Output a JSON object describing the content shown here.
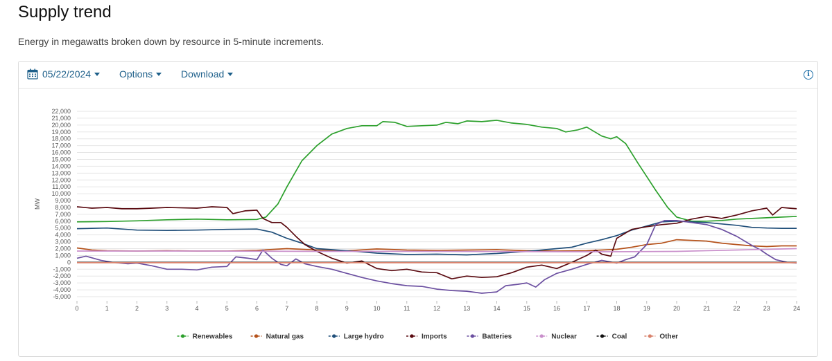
{
  "header": {
    "title": "Supply trend",
    "subtitle": "Energy in megawatts broken down by resource in 5-minute increments."
  },
  "toolbar": {
    "date": "05/22/2024",
    "options_label": "Options",
    "download_label": "Download",
    "info_glyph": "i"
  },
  "chart_data": {
    "type": "line",
    "ylabel": "MW",
    "ylim": [
      -5000,
      22000
    ],
    "ytick_step": 1000,
    "xlim": [
      0,
      24
    ],
    "x_ticks": [
      0,
      1,
      2,
      3,
      4,
      5,
      6,
      7,
      8,
      9,
      10,
      11,
      12,
      13,
      14,
      15,
      16,
      17,
      18,
      19,
      20,
      21,
      22,
      23,
      24
    ],
    "grid": true,
    "legend_position": "bottom",
    "series": [
      {
        "name": "Renewables",
        "color": "#2ca02c",
        "points": [
          [
            0,
            5900
          ],
          [
            1,
            5950
          ],
          [
            2,
            6050
          ],
          [
            3,
            6200
          ],
          [
            4,
            6300
          ],
          [
            5,
            6200
          ],
          [
            6,
            6250
          ],
          [
            6.3,
            6600
          ],
          [
            6.7,
            8500
          ],
          [
            7,
            11000
          ],
          [
            7.5,
            14800
          ],
          [
            8,
            17000
          ],
          [
            8.5,
            18700
          ],
          [
            9,
            19500
          ],
          [
            9.5,
            19900
          ],
          [
            10,
            19900
          ],
          [
            10.2,
            20500
          ],
          [
            10.6,
            20400
          ],
          [
            11,
            19800
          ],
          [
            11.5,
            19900
          ],
          [
            12,
            20000
          ],
          [
            12.3,
            20400
          ],
          [
            12.7,
            20200
          ],
          [
            13,
            20600
          ],
          [
            13.5,
            20500
          ],
          [
            14,
            20700
          ],
          [
            14.5,
            20300
          ],
          [
            15,
            20100
          ],
          [
            15.5,
            19700
          ],
          [
            16,
            19500
          ],
          [
            16.3,
            19000
          ],
          [
            16.7,
            19300
          ],
          [
            17,
            19700
          ],
          [
            17.5,
            18400
          ],
          [
            17.8,
            18000
          ],
          [
            18,
            18300
          ],
          [
            18.3,
            17300
          ],
          [
            18.7,
            14500
          ],
          [
            19,
            12500
          ],
          [
            19.3,
            10500
          ],
          [
            19.7,
            8000
          ],
          [
            20,
            6600
          ],
          [
            20.5,
            6000
          ],
          [
            21,
            6000
          ],
          [
            21.5,
            6100
          ],
          [
            22,
            6300
          ],
          [
            23,
            6500
          ],
          [
            24,
            6700
          ]
        ]
      },
      {
        "name": "Natural gas",
        "color": "#b5521b",
        "points": [
          [
            0,
            2100
          ],
          [
            0.5,
            1800
          ],
          [
            1,
            1700
          ],
          [
            2,
            1650
          ],
          [
            3,
            1700
          ],
          [
            4,
            1650
          ],
          [
            5,
            1650
          ],
          [
            6,
            1750
          ],
          [
            7,
            2000
          ],
          [
            8,
            1800
          ],
          [
            9,
            1700
          ],
          [
            10,
            1950
          ],
          [
            11,
            1800
          ],
          [
            12,
            1750
          ],
          [
            13,
            1800
          ],
          [
            14,
            1850
          ],
          [
            15,
            1700
          ],
          [
            16,
            1650
          ],
          [
            17,
            1700
          ],
          [
            18,
            1900
          ],
          [
            18.5,
            2200
          ],
          [
            19,
            2600
          ],
          [
            19.5,
            2800
          ],
          [
            20,
            3300
          ],
          [
            20.5,
            3200
          ],
          [
            21,
            3100
          ],
          [
            21.5,
            2800
          ],
          [
            22,
            2600
          ],
          [
            22.5,
            2400
          ],
          [
            23,
            2300
          ],
          [
            23.5,
            2400
          ],
          [
            24,
            2400
          ]
        ]
      },
      {
        "name": "Large hydro",
        "color": "#1f4e79",
        "points": [
          [
            0,
            4900
          ],
          [
            1,
            5000
          ],
          [
            2,
            4700
          ],
          [
            3,
            4650
          ],
          [
            4,
            4700
          ],
          [
            5,
            4800
          ],
          [
            6,
            4850
          ],
          [
            6.5,
            4400
          ],
          [
            7,
            3500
          ],
          [
            7.5,
            2800
          ],
          [
            8,
            2000
          ],
          [
            9,
            1700
          ],
          [
            10,
            1350
          ],
          [
            11,
            1150
          ],
          [
            12,
            1200
          ],
          [
            13,
            1100
          ],
          [
            14,
            1300
          ],
          [
            15,
            1600
          ],
          [
            15.5,
            1800
          ],
          [
            16,
            2000
          ],
          [
            16.5,
            2200
          ],
          [
            17,
            2800
          ],
          [
            17.5,
            3300
          ],
          [
            18,
            3900
          ],
          [
            18.5,
            4700
          ],
          [
            19,
            5300
          ],
          [
            19.5,
            5900
          ],
          [
            20,
            6000
          ],
          [
            20.5,
            5900
          ],
          [
            21,
            5800
          ],
          [
            21.5,
            5600
          ],
          [
            22,
            5400
          ],
          [
            22.5,
            5100
          ],
          [
            23,
            5000
          ],
          [
            23.5,
            4950
          ],
          [
            24,
            4950
          ]
        ]
      },
      {
        "name": "Imports",
        "color": "#5a0a10",
        "points": [
          [
            0,
            8100
          ],
          [
            0.5,
            7900
          ],
          [
            1,
            8000
          ],
          [
            1.5,
            7800
          ],
          [
            2,
            7800
          ],
          [
            2.5,
            7900
          ],
          [
            3,
            8000
          ],
          [
            4,
            7900
          ],
          [
            4.5,
            8100
          ],
          [
            5,
            8000
          ],
          [
            5.2,
            7100
          ],
          [
            5.6,
            7500
          ],
          [
            6,
            7600
          ],
          [
            6.2,
            6400
          ],
          [
            6.5,
            5800
          ],
          [
            6.8,
            5800
          ],
          [
            7,
            5100
          ],
          [
            7.3,
            3800
          ],
          [
            7.6,
            2600
          ],
          [
            8,
            1600
          ],
          [
            8.5,
            600
          ],
          [
            9,
            -100
          ],
          [
            9.5,
            200
          ],
          [
            10,
            -900
          ],
          [
            10.5,
            -1200
          ],
          [
            11,
            -1000
          ],
          [
            11.5,
            -1400
          ],
          [
            12,
            -1500
          ],
          [
            12.5,
            -2400
          ],
          [
            13,
            -2000
          ],
          [
            13.5,
            -2200
          ],
          [
            14,
            -2100
          ],
          [
            14.5,
            -1500
          ],
          [
            15,
            -700
          ],
          [
            15.5,
            -400
          ],
          [
            16,
            -900
          ],
          [
            16.5,
            0
          ],
          [
            17,
            1000
          ],
          [
            17.3,
            1800
          ],
          [
            17.5,
            1200
          ],
          [
            17.8,
            900
          ],
          [
            18,
            3500
          ],
          [
            18.5,
            4800
          ],
          [
            19,
            5200
          ],
          [
            19.5,
            5500
          ],
          [
            20,
            5700
          ],
          [
            20.5,
            6300
          ],
          [
            21,
            6700
          ],
          [
            21.5,
            6400
          ],
          [
            22,
            6900
          ],
          [
            22.5,
            7500
          ],
          [
            23,
            7900
          ],
          [
            23.2,
            6900
          ],
          [
            23.5,
            8000
          ],
          [
            24,
            7800
          ]
        ]
      },
      {
        "name": "Batteries",
        "color": "#6b4fa0",
        "points": [
          [
            0,
            600
          ],
          [
            0.3,
            900
          ],
          [
            0.8,
            300
          ],
          [
            1.2,
            0
          ],
          [
            1.7,
            -200
          ],
          [
            2,
            -100
          ],
          [
            2.5,
            -500
          ],
          [
            3,
            -1000
          ],
          [
            3.5,
            -1000
          ],
          [
            4,
            -1100
          ],
          [
            4.5,
            -700
          ],
          [
            5,
            -600
          ],
          [
            5.3,
            800
          ],
          [
            5.7,
            600
          ],
          [
            6,
            400
          ],
          [
            6.2,
            1800
          ],
          [
            6.5,
            600
          ],
          [
            6.8,
            -300
          ],
          [
            7,
            -500
          ],
          [
            7.3,
            500
          ],
          [
            7.6,
            -200
          ],
          [
            8,
            -600
          ],
          [
            8.5,
            -1000
          ],
          [
            9,
            -1600
          ],
          [
            9.5,
            -2200
          ],
          [
            10,
            -2700
          ],
          [
            10.5,
            -3100
          ],
          [
            11,
            -3400
          ],
          [
            11.5,
            -3500
          ],
          [
            12,
            -3900
          ],
          [
            12.5,
            -4100
          ],
          [
            13,
            -4200
          ],
          [
            13.5,
            -4500
          ],
          [
            14,
            -4300
          ],
          [
            14.3,
            -3400
          ],
          [
            14.7,
            -3200
          ],
          [
            15,
            -3000
          ],
          [
            15.3,
            -3600
          ],
          [
            15.6,
            -2500
          ],
          [
            16,
            -1600
          ],
          [
            16.5,
            -1000
          ],
          [
            17,
            -300
          ],
          [
            17.5,
            300
          ],
          [
            18,
            -100
          ],
          [
            18.3,
            400
          ],
          [
            18.6,
            800
          ],
          [
            19,
            2600
          ],
          [
            19.3,
            5500
          ],
          [
            19.6,
            6100
          ],
          [
            20,
            6100
          ],
          [
            20.5,
            5800
          ],
          [
            21,
            5500
          ],
          [
            21.5,
            4800
          ],
          [
            22,
            3800
          ],
          [
            22.5,
            2500
          ],
          [
            22.8,
            1800
          ],
          [
            23,
            1200
          ],
          [
            23.3,
            400
          ],
          [
            23.7,
            0
          ],
          [
            24,
            -100
          ]
        ]
      },
      {
        "name": "Nuclear",
        "color": "#c98fcb",
        "points": [
          [
            0,
            1650
          ],
          [
            4,
            1650
          ],
          [
            8,
            1600
          ],
          [
            12,
            1600
          ],
          [
            16,
            1550
          ],
          [
            18,
            1550
          ],
          [
            20,
            1600
          ],
          [
            22,
            1800
          ],
          [
            24,
            2000
          ]
        ]
      },
      {
        "name": "Coal",
        "color": "#111111",
        "points": [
          [
            0,
            0
          ],
          [
            24,
            0
          ]
        ]
      },
      {
        "name": "Other",
        "color": "#d9826c",
        "points": [
          [
            0,
            -50
          ],
          [
            24,
            -50
          ]
        ]
      }
    ]
  }
}
